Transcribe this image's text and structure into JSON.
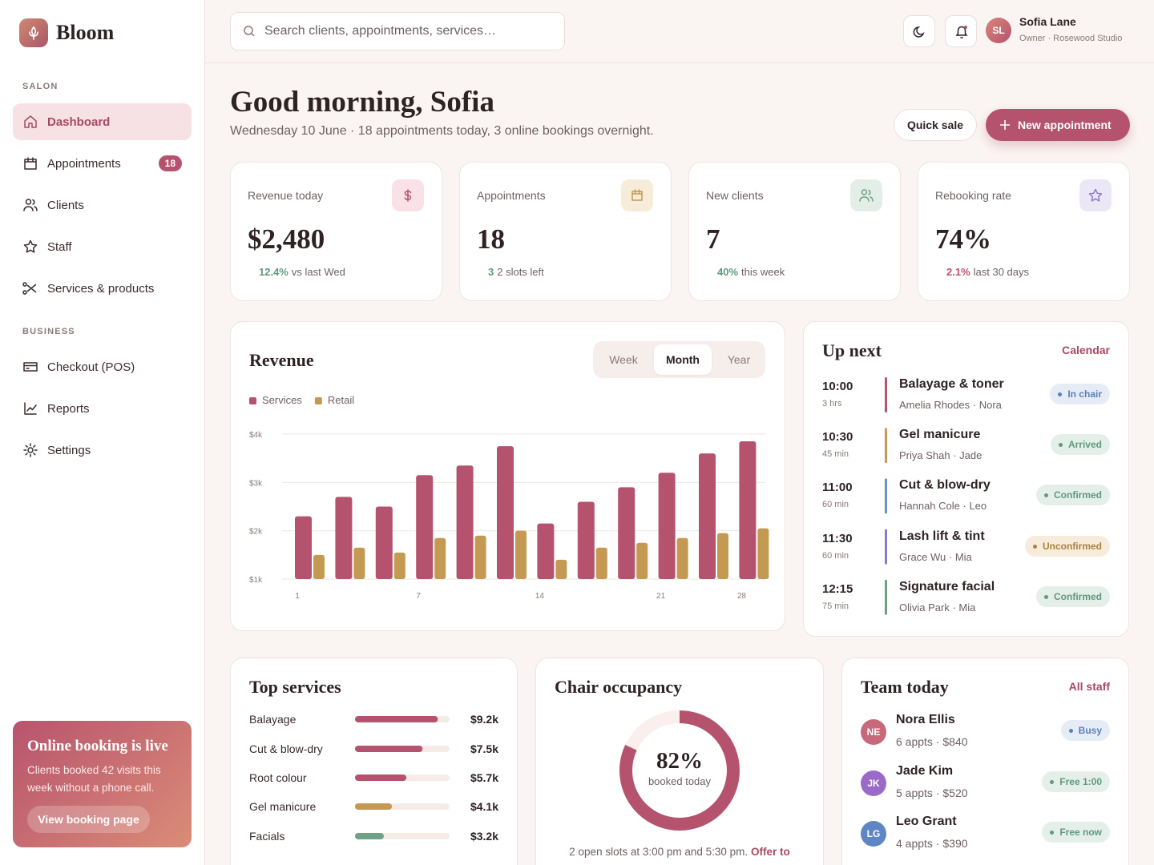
{
  "brand": "Bloom",
  "search_placeholder": "Search clients, appointments, services…",
  "user": {
    "initials": "SL",
    "name": "Sofia Lane",
    "role": "Owner · Rosewood Studio"
  },
  "nav": {
    "sections": [
      {
        "title": "SALON",
        "items": [
          {
            "label": "Dashboard",
            "active": true
          },
          {
            "label": "Appointments",
            "badge": 18
          },
          {
            "label": "Clients"
          },
          {
            "label": "Staff"
          },
          {
            "label": "Services & products"
          }
        ]
      },
      {
        "title": "BUSINESS",
        "items": [
          {
            "label": "Checkout (POS)"
          },
          {
            "label": "Reports"
          },
          {
            "label": "Settings"
          }
        ]
      }
    ]
  },
  "promo": {
    "title": "Online booking is live",
    "text": "Clients booked 42 visits this week without a phone call.",
    "button": "View booking page"
  },
  "greeting": {
    "title": "Good morning, Sofia",
    "subtitle": "Wednesday 10 June · 18 appointments today, 3 online bookings overnight."
  },
  "actions": {
    "quick_sale": "Quick sale",
    "new_appointment": "New appointment"
  },
  "kpis": [
    {
      "label": "Revenue today",
      "value": "$2,480",
      "delta": "12.4%",
      "note": "vs last Wed",
      "trend": "up"
    },
    {
      "label": "Appointments",
      "value": "18",
      "delta": "3",
      "note": "2 slots left",
      "trend": "up"
    },
    {
      "label": "New clients",
      "value": "7",
      "delta": "40%",
      "note": "this week",
      "trend": "up"
    },
    {
      "label": "Rebooking rate",
      "value": "74%",
      "delta": "2.1%",
      "note": "last 30 days",
      "trend": "down"
    }
  ],
  "chart_data": {
    "type": "bar",
    "title": "Revenue",
    "tabs": [
      "Week",
      "Month",
      "Year"
    ],
    "active_tab": 1,
    "categories": [
      "1",
      null,
      null,
      "7",
      null,
      null,
      "14",
      null,
      null,
      "21",
      null,
      "28"
    ],
    "series": [
      {
        "name": "Services",
        "color": "#b5536e",
        "values": [
          2300,
          2700,
          2500,
          3150,
          3350,
          3750,
          2150,
          2600,
          2900,
          3200,
          3600,
          3850
        ]
      },
      {
        "name": "Retail",
        "color": "#c49a52",
        "values": [
          1500,
          1650,
          1550,
          1850,
          1900,
          2000,
          1400,
          1650,
          1750,
          1850,
          1950,
          2050
        ]
      }
    ],
    "ylim": [
      1000,
      4000
    ],
    "yticks": [
      {
        "value": 1000,
        "label": "$1k"
      },
      {
        "value": 2000,
        "label": "$2k"
      },
      {
        "value": 3000,
        "label": "$3k"
      },
      {
        "value": 4000,
        "label": "$4k"
      }
    ],
    "grid": true
  },
  "up_next": {
    "title": "Up next",
    "link": "Calendar",
    "items": [
      {
        "time": "10:00",
        "duration": "3 hrs",
        "service": "Balayage & toner",
        "people": "Amelia Rhodes · Nora",
        "status": "In chair",
        "tone": "blue",
        "color": "#b5536e"
      },
      {
        "time": "10:30",
        "duration": "45 min",
        "service": "Gel manicure",
        "people": "Priya Shah · Jade",
        "status": "Arrived",
        "tone": "green",
        "color": "#c49a52"
      },
      {
        "time": "11:00",
        "duration": "60 min",
        "service": "Cut & blow-dry",
        "people": "Hannah Cole · Leo",
        "status": "Confirmed",
        "tone": "green",
        "color": "#6b8fc9"
      },
      {
        "time": "11:30",
        "duration": "60 min",
        "service": "Lash lift & tint",
        "people": "Grace Wu · Mia",
        "status": "Unconfirmed",
        "tone": "gold",
        "color": "#8b7cc8"
      },
      {
        "time": "12:15",
        "duration": "75 min",
        "service": "Signature facial",
        "people": "Olivia Park · Mia",
        "status": "Confirmed",
        "tone": "green",
        "color": "#6fa184"
      }
    ]
  },
  "top_services": {
    "title": "Top services",
    "xlim": [
      0,
      10500
    ],
    "categories": [
      "Balayage",
      "Cut & blow-dry",
      "Root colour",
      "Gel manicure",
      "Facials"
    ],
    "values": [
      9200,
      7500,
      5700,
      4100,
      3200
    ],
    "value_labels": [
      "$9.2k",
      "$7.5k",
      "$5.7k",
      "$4.1k",
      "$3.2k"
    ],
    "colors": [
      "#b5536e",
      "#b5536e",
      "#b5536e",
      "#c49a52",
      "#6fa184"
    ]
  },
  "occupancy": {
    "title": "Chair occupancy",
    "value": 82,
    "value_label": "82%",
    "caption": "booked today",
    "color": "#b5536e",
    "note": "2 open slots at 3:00 pm and 5:30 pm.",
    "note_link": "Offer to"
  },
  "team": {
    "title": "Team today",
    "link": "All staff",
    "members": [
      {
        "initials": "NE",
        "name": "Nora Ellis",
        "meta": "6 appts · $840",
        "status": "Busy",
        "tone": "blue",
        "avatar": "#c8687a"
      },
      {
        "initials": "JK",
        "name": "Jade Kim",
        "meta": "5 appts · $520",
        "status": "Free 1:00",
        "tone": "green",
        "avatar": "#9b6ac8"
      },
      {
        "initials": "LG",
        "name": "Leo Grant",
        "meta": "4 appts · $390",
        "status": "Free now",
        "tone": "green",
        "avatar": "#5f86c4"
      }
    ]
  }
}
